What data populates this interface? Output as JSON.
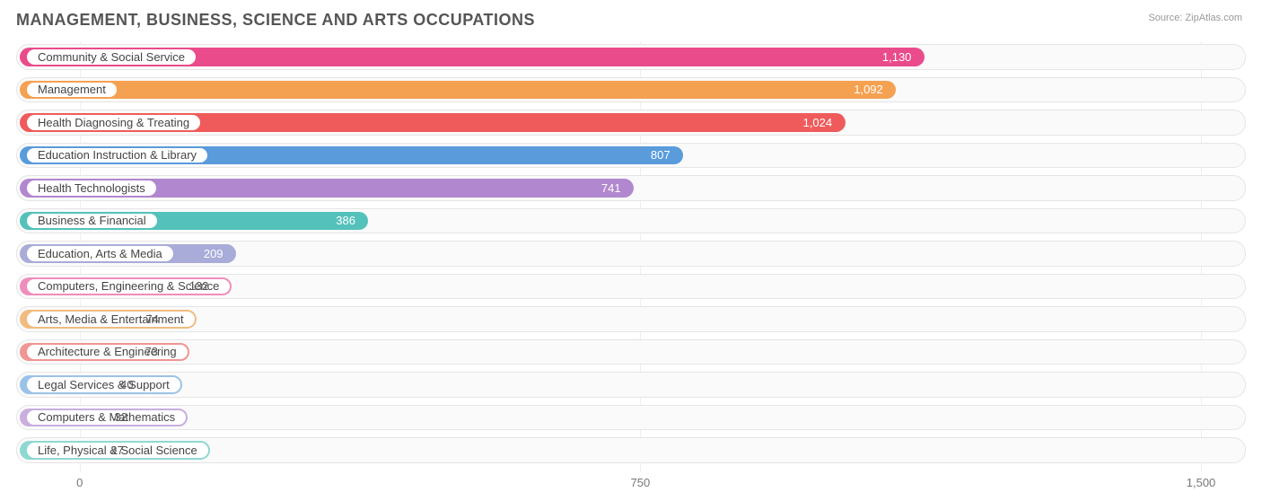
{
  "title": "MANAGEMENT, BUSINESS, SCIENCE AND ARTS OCCUPATIONS",
  "title_fontsize": 18,
  "title_color": "#555555",
  "source": "Source: ZipAtlas.com",
  "background_color": "#ffffff",
  "track_bg": "#fafafa",
  "track_border": "#e5e5e5",
  "grid_color": "#eeeeee",
  "label_color": "#444444",
  "value_color": "#555555",
  "tick_color": "#777777",
  "label_fontsize": 13,
  "value_fontsize": 13,
  "tick_fontsize": 13,
  "chart": {
    "type": "bar-horizontal",
    "xmin": -85,
    "xmax": 1560,
    "ticks": [
      {
        "v": 0,
        "label": "0"
      },
      {
        "v": 750,
        "label": "750"
      },
      {
        "v": 1500,
        "label": "1,500"
      }
    ],
    "bar_radius": 11,
    "row_height": 34.5,
    "items": [
      {
        "label": "Community & Social Service",
        "value": 1130,
        "display": "1,130",
        "color": "#ea4b8b"
      },
      {
        "label": "Management",
        "value": 1092,
        "display": "1,092",
        "color": "#f5a152"
      },
      {
        "label": "Health Diagnosing & Treating",
        "value": 1024,
        "display": "1,024",
        "color": "#ef5b5b"
      },
      {
        "label": "Education Instruction & Library",
        "value": 807,
        "display": "807",
        "color": "#5a9bdc"
      },
      {
        "label": "Health Technologists",
        "value": 741,
        "display": "741",
        "color": "#b187cf"
      },
      {
        "label": "Business & Financial",
        "value": 386,
        "display": "386",
        "color": "#54c1bb"
      },
      {
        "label": "Education, Arts & Media",
        "value": 209,
        "display": "209",
        "color": "#a9acd8"
      },
      {
        "label": "Computers, Engineering & Science",
        "value": 132,
        "display": "132",
        "color": "#f08dbb"
      },
      {
        "label": "Arts, Media & Entertainment",
        "value": 74,
        "display": "74",
        "color": "#f2bb7f"
      },
      {
        "label": "Architecture & Engineering",
        "value": 73,
        "display": "73",
        "color": "#f19595"
      },
      {
        "label": "Legal Services & Support",
        "value": 40,
        "display": "40",
        "color": "#9bc2e7"
      },
      {
        "label": "Computers & Mathematics",
        "value": 32,
        "display": "32",
        "color": "#c9aedf"
      },
      {
        "label": "Life, Physical & Social Science",
        "value": 27,
        "display": "27",
        "color": "#8fd8d2"
      }
    ]
  }
}
